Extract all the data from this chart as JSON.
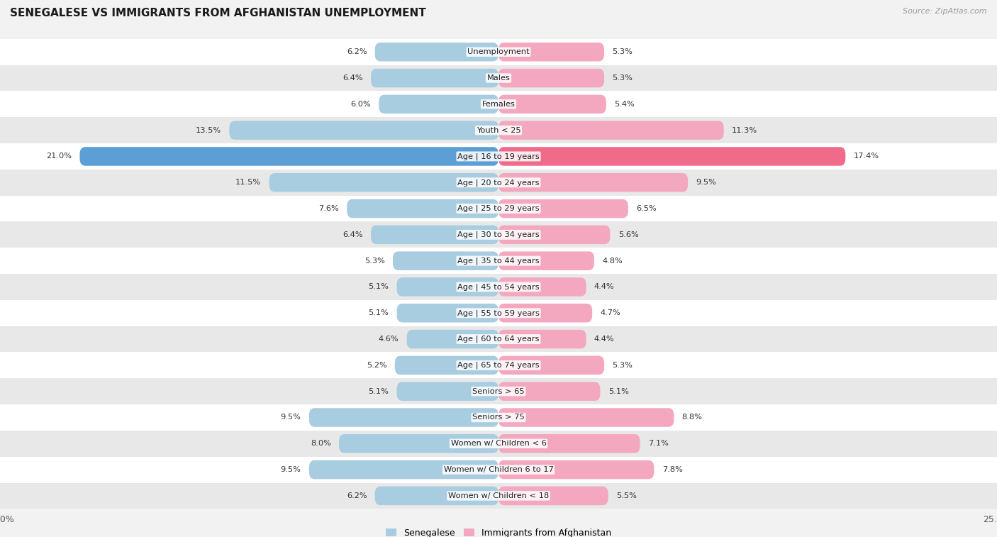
{
  "title": "SENEGALESE VS IMMIGRANTS FROM AFGHANISTAN UNEMPLOYMENT",
  "source": "Source: ZipAtlas.com",
  "categories": [
    "Unemployment",
    "Males",
    "Females",
    "Youth < 25",
    "Age | 16 to 19 years",
    "Age | 20 to 24 years",
    "Age | 25 to 29 years",
    "Age | 30 to 34 years",
    "Age | 35 to 44 years",
    "Age | 45 to 54 years",
    "Age | 55 to 59 years",
    "Age | 60 to 64 years",
    "Age | 65 to 74 years",
    "Seniors > 65",
    "Seniors > 75",
    "Women w/ Children < 6",
    "Women w/ Children 6 to 17",
    "Women w/ Children < 18"
  ],
  "senegalese": [
    6.2,
    6.4,
    6.0,
    13.5,
    21.0,
    11.5,
    7.6,
    6.4,
    5.3,
    5.1,
    5.1,
    4.6,
    5.2,
    5.1,
    9.5,
    8.0,
    9.5,
    6.2
  ],
  "afghanistan": [
    5.3,
    5.3,
    5.4,
    11.3,
    17.4,
    9.5,
    6.5,
    5.6,
    4.8,
    4.4,
    4.7,
    4.4,
    5.3,
    5.1,
    8.8,
    7.1,
    7.8,
    5.5
  ],
  "senegalese_color": "#a8cce0",
  "afghanistan_color": "#f4a8bf",
  "highlight_senegalese_color": "#5b9fd6",
  "highlight_afghanistan_color": "#f06b8a",
  "background_color": "#f2f2f2",
  "row_color_even": "#ffffff",
  "row_color_odd": "#e8e8e8",
  "axis_limit": 25.0,
  "label_senegalese": "Senegalese",
  "label_afghanistan": "Immigrants from Afghanistan",
  "highlight_row": "Age | 16 to 19 years"
}
